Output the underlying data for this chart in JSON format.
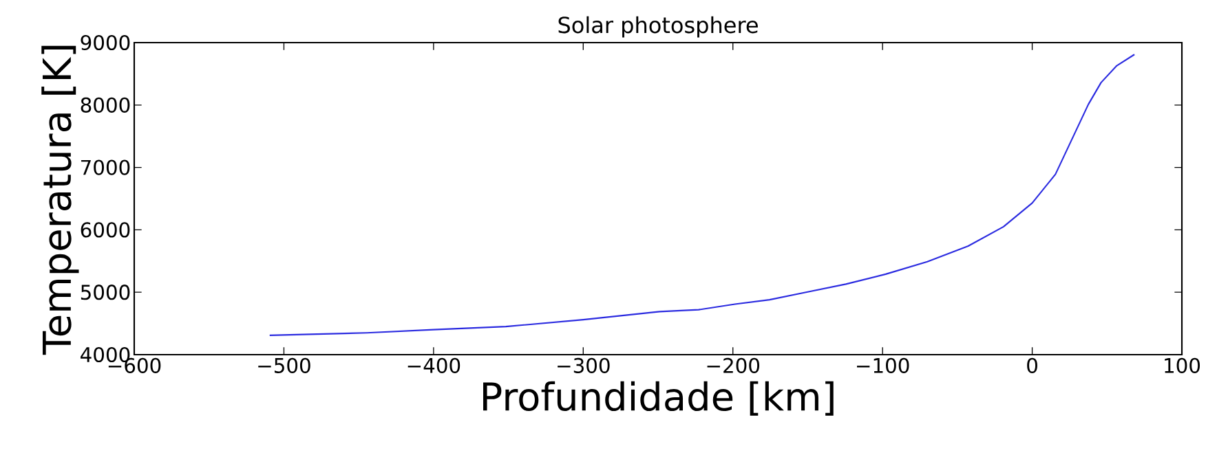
{
  "chart_data": {
    "type": "line",
    "title": "Solar photosphere",
    "xlabel": "Profundidade [km]",
    "ylabel": "Temperatura [K]",
    "x": [
      -509.5,
      -444.5,
      -400,
      -351.7,
      -300,
      -249,
      -222.9,
      -198.6,
      -175.5,
      -151.2,
      -124.5,
      -97.9,
      -70.1,
      -42.8,
      -19.2,
      0,
      15.5,
      37.5,
      46,
      56.5,
      68.3
    ],
    "series": [
      {
        "color": "#2b2be0",
        "values": [
          4310,
          4350,
          4400,
          4450,
          4560,
          4690,
          4720,
          4810,
          4880,
          5000,
          5130,
          5290,
          5490,
          5740,
          6050,
          6430,
          6890,
          8010,
          8360,
          8630,
          8810
        ]
      }
    ],
    "xlim": [
      -600,
      100
    ],
    "ylim": [
      4000,
      9000
    ],
    "xticks": [
      {
        "value": -600,
        "label": "−600"
      },
      {
        "value": -500,
        "label": "−500"
      },
      {
        "value": -400,
        "label": "−400"
      },
      {
        "value": -300,
        "label": "−300"
      },
      {
        "value": -200,
        "label": "−200"
      },
      {
        "value": -100,
        "label": "−100"
      },
      0,
      100
    ],
    "yticks": [
      4000,
      5000,
      6000,
      7000,
      8000,
      9000
    ],
    "grid": false,
    "marker": "none",
    "line_style": "solid"
  }
}
